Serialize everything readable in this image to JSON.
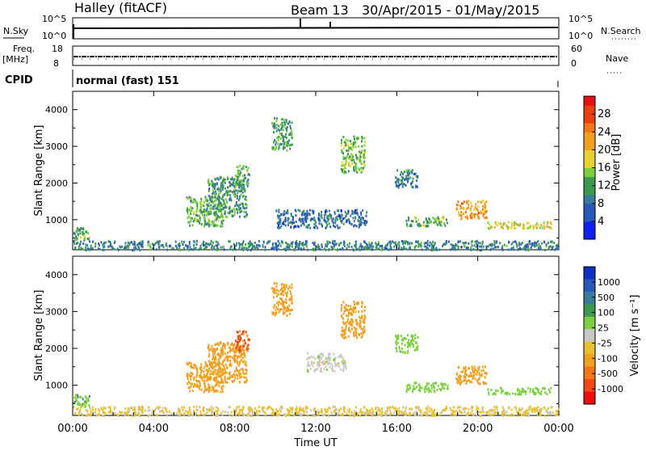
{
  "header": {
    "radar": "Halley (fitACF)",
    "beam": "Beam 13",
    "date_range": "30/Apr/2015 - 01/May/2015"
  },
  "strips": {
    "nsky_label": "N.Sky",
    "nsky_ticks": [
      "10^5",
      "10^0"
    ],
    "nsearch_label": "N.Search",
    "nsearch_ticks": [
      "10^5",
      "10^0"
    ],
    "freq_label": "Freq.",
    "freq_unit": "[MHz]",
    "freq_ticks": [
      "18",
      "8"
    ],
    "nave_label": "Nave",
    "nave_ticks": [
      "60",
      "0"
    ],
    "cpid_label": "CPID",
    "cpid_value": "normal (fast) 151"
  },
  "colors": {
    "scale": [
      "#1020f0",
      "#2858b8",
      "#3a7a9a",
      "#3c9a50",
      "#7ccf3c",
      "#e6d230",
      "#f2a020",
      "#f07818",
      "#e84010",
      "#e81010"
    ],
    "velocity_scale": [
      "#ee1010",
      "#f04818",
      "#f07818",
      "#f2a020",
      "#e8c030",
      "#c8c8c8",
      "#7cd040",
      "#3c9a50",
      "#3a7a9a",
      "#2858b8",
      "#1030c0"
    ]
  },
  "chart_data": [
    {
      "type": "heatmap",
      "panel": "power",
      "ylabel": "Slant Range [km]",
      "yticks": [
        "1000",
        "2000",
        "3000",
        "4000"
      ],
      "ylim": [
        180,
        4500
      ],
      "xlim": [
        0,
        24
      ],
      "colorbar_label": "Power [dB]",
      "colorbar_ticks": [
        "4",
        "8",
        "12",
        "16",
        "20",
        "24",
        "28"
      ],
      "clim": [
        0,
        32
      ],
      "regions": [
        {
          "x": [
            5.6,
            7.4
          ],
          "y": [
            850,
            1650
          ],
          "level": 12
        },
        {
          "x": [
            6.6,
            8.6
          ],
          "y": [
            1100,
            2200
          ],
          "level": 10
        },
        {
          "x": [
            8.0,
            8.7
          ],
          "y": [
            1900,
            2500
          ],
          "level": 12
        },
        {
          "x": [
            9.8,
            10.8
          ],
          "y": [
            2900,
            3800
          ],
          "level": 11
        },
        {
          "x": [
            13.2,
            14.4
          ],
          "y": [
            2300,
            3300
          ],
          "level": 14
        },
        {
          "x": [
            10.0,
            14.5
          ],
          "y": [
            800,
            1300
          ],
          "level": 6
        },
        {
          "x": [
            15.9,
            17.0
          ],
          "y": [
            1900,
            2400
          ],
          "level": 8
        },
        {
          "x": [
            16.4,
            18.5
          ],
          "y": [
            850,
            1100
          ],
          "level": 12
        },
        {
          "x": [
            18.9,
            20.4
          ],
          "y": [
            1050,
            1550
          ],
          "level": 22
        },
        {
          "x": [
            20.4,
            23.6
          ],
          "y": [
            780,
            960
          ],
          "level": 18
        },
        {
          "x": [
            0.0,
            24.0
          ],
          "y": [
            200,
            450
          ],
          "level": 8
        },
        {
          "x": [
            0.0,
            0.8
          ],
          "y": [
            450,
            800
          ],
          "level": 12
        }
      ]
    },
    {
      "type": "heatmap",
      "panel": "velocity",
      "ylabel": "Slant Range [km]",
      "yticks": [
        "1000",
        "2000",
        "3000",
        "4000"
      ],
      "ylim": [
        180,
        4500
      ],
      "xlim": [
        0,
        24
      ],
      "xlabel": "Time UT",
      "xticks": [
        "00:00",
        "04:00",
        "08:00",
        "12:00",
        "16:00",
        "20:00",
        "00:00"
      ],
      "colorbar_label": "Velocity [m s⁻¹]",
      "colorbar_ticks": [
        "1000",
        "500",
        "100",
        "25",
        "-25",
        "-100",
        "-500",
        "-1000"
      ],
      "regions": [
        {
          "x": [
            5.6,
            7.4
          ],
          "y": [
            850,
            1650
          ],
          "v": -200
        },
        {
          "x": [
            6.6,
            8.6
          ],
          "y": [
            1100,
            2200
          ],
          "v": -250
        },
        {
          "x": [
            8.0,
            8.7
          ],
          "y": [
            1900,
            2500
          ],
          "v": -600
        },
        {
          "x": [
            9.8,
            10.8
          ],
          "y": [
            2900,
            3800
          ],
          "v": -200
        },
        {
          "x": [
            13.2,
            14.4
          ],
          "y": [
            2300,
            3300
          ],
          "v": -300
        },
        {
          "x": [
            11.5,
            13.5
          ],
          "y": [
            1400,
            1900
          ],
          "v": 0
        },
        {
          "x": [
            15.9,
            17.0
          ],
          "y": [
            1900,
            2400
          ],
          "v": 60
        },
        {
          "x": [
            16.4,
            18.5
          ],
          "y": [
            850,
            1100
          ],
          "v": 60
        },
        {
          "x": [
            18.9,
            20.4
          ],
          "y": [
            1050,
            1550
          ],
          "v": -200
        },
        {
          "x": [
            20.4,
            23.6
          ],
          "y": [
            780,
            960
          ],
          "v": 60
        },
        {
          "x": [
            0.0,
            24.0
          ],
          "y": [
            200,
            450
          ],
          "v": -40
        },
        {
          "x": [
            0.0,
            0.8
          ],
          "y": [
            450,
            800
          ],
          "v": 80
        }
      ]
    }
  ]
}
